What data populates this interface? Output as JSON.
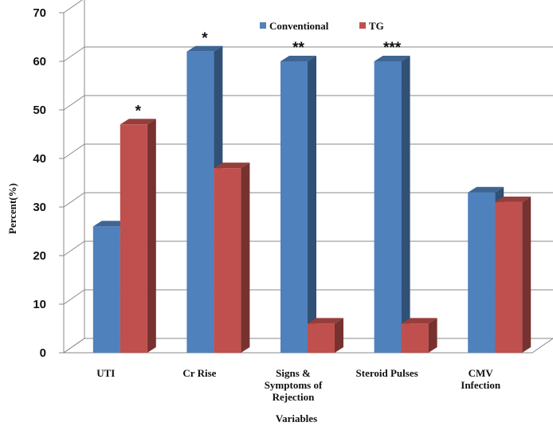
{
  "chart_data": {
    "type": "bar",
    "style": "3d-clustered-column",
    "categories": [
      [
        "UTI"
      ],
      [
        "Cr Rise"
      ],
      [
        "Signs &",
        "Symptoms of",
        "Rejection"
      ],
      [
        "Steroid Pulses"
      ],
      [
        "CMV",
        "Infection"
      ]
    ],
    "series": [
      {
        "name": "Conventional",
        "color": "#4F81BD",
        "values": [
          26,
          62,
          60,
          60,
          33
        ]
      },
      {
        "name": "TG",
        "color": "#C0504D",
        "values": [
          47,
          38,
          6,
          6,
          31
        ]
      }
    ],
    "annotations": [
      {
        "category_index": 0,
        "series_index": 1,
        "text": "*"
      },
      {
        "category_index": 1,
        "series_index": 0,
        "text": "*"
      },
      {
        "category_index": 2,
        "series_index": 0,
        "text": "**"
      },
      {
        "category_index": 3,
        "series_index": 0,
        "text": "***"
      }
    ],
    "xlabel": "Variables",
    "ylabel": "Percent(%)",
    "ylim": [
      0,
      70
    ],
    "yticks": [
      0,
      10,
      20,
      30,
      40,
      50,
      60,
      70
    ],
    "grid": true,
    "legend": "top-center"
  }
}
